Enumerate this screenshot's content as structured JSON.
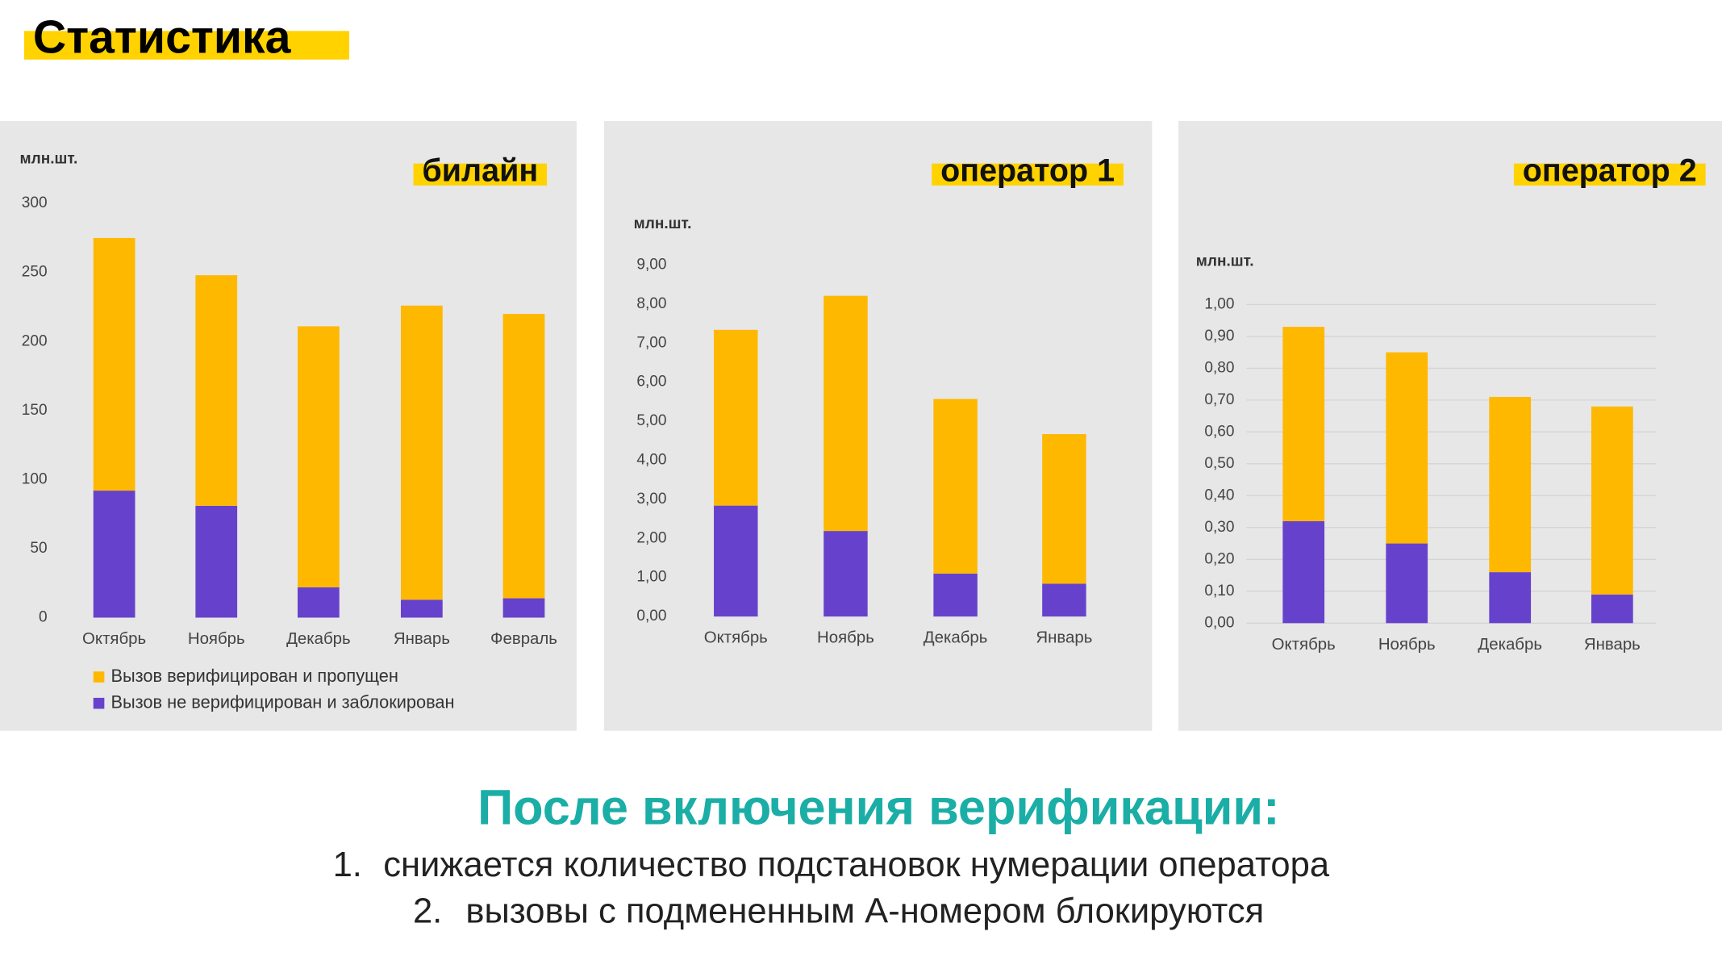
{
  "title": "Статистика",
  "chart_data": [
    {
      "type": "bar",
      "stacked": true,
      "title": "билайн",
      "y_label": "млн.шт.",
      "categories": [
        "Октябрь",
        "Ноябрь",
        "Декабрь",
        "Январь",
        "Февраль"
      ],
      "series": [
        {
          "name": "Вызов верифицирован и пропущен",
          "color": "#ffb800",
          "values": [
            183,
            167,
            189,
            213,
            206
          ]
        },
        {
          "name": "Вызов не верифицирован и заблокирован",
          "color": "#6642cc",
          "values": [
            92,
            81,
            22,
            13,
            14
          ]
        }
      ],
      "ylim": [
        0,
        300
      ],
      "yticks": [
        0,
        50,
        100,
        150,
        200,
        250,
        300
      ],
      "grid": false
    },
    {
      "type": "bar",
      "stacked": true,
      "title": "оператор 1",
      "y_label": "млн.шт.",
      "categories": [
        "Октябрь",
        "Ноябрь",
        "Декабрь",
        "Январь"
      ],
      "series": [
        {
          "color": "#ffb800",
          "values": [
            4.5,
            6.02,
            4.47,
            3.83
          ]
        },
        {
          "color": "#6642cc",
          "values": [
            2.84,
            2.19,
            1.1,
            0.84
          ]
        }
      ],
      "ylim": [
        0,
        9
      ],
      "yticks": [
        {
          "value": 0,
          "label": "0,00"
        },
        {
          "value": 1,
          "label": "1,00"
        },
        {
          "value": 2,
          "label": "2,00"
        },
        {
          "value": 3,
          "label": "3,00"
        },
        {
          "value": 4,
          "label": "4,00"
        },
        {
          "value": 5,
          "label": "5,00"
        },
        {
          "value": 6,
          "label": "6,00"
        },
        {
          "value": 7,
          "label": "7,00"
        },
        {
          "value": 8,
          "label": "8,00"
        },
        {
          "value": 9,
          "label": "9,00"
        }
      ],
      "grid": false
    },
    {
      "type": "bar",
      "stacked": true,
      "title": "оператор 2",
      "y_label": "млн.шт.",
      "categories": [
        "Октябрь",
        "Ноябрь",
        "Декабрь",
        "Январь"
      ],
      "series": [
        {
          "color": "#ffb800",
          "values": [
            0.61,
            0.6,
            0.55,
            0.59
          ]
        },
        {
          "color": "#6642cc",
          "values": [
            0.32,
            0.25,
            0.16,
            0.09
          ]
        }
      ],
      "ylim": [
        0,
        1
      ],
      "yticks": [
        {
          "value": 0,
          "label": "0,00"
        },
        {
          "value": 0.1,
          "label": "0,10"
        },
        {
          "value": 0.2,
          "label": "0,20"
        },
        {
          "value": 0.3,
          "label": "0,30"
        },
        {
          "value": 0.4,
          "label": "0,40"
        },
        {
          "value": 0.5,
          "label": "0,50"
        },
        {
          "value": 0.6,
          "label": "0,60"
        },
        {
          "value": 0.7,
          "label": "0,70"
        },
        {
          "value": 0.8,
          "label": "0,80"
        },
        {
          "value": 0.9,
          "label": "0,90"
        },
        {
          "value": 1,
          "label": "1,00"
        }
      ],
      "grid": true
    }
  ],
  "conclusion": {
    "heading": "После включения верификации:",
    "items": [
      {
        "marker": "1.",
        "text": "снижается количество подстановок нумерации оператора"
      },
      {
        "marker": "2.",
        "text": "вызовы с подмененным А-номером блокируются"
      }
    ]
  }
}
